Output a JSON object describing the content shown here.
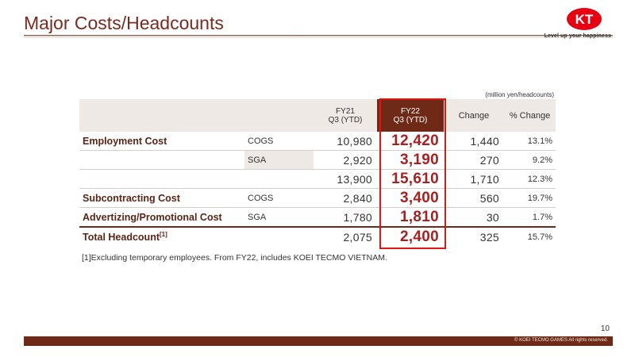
{
  "slide": {
    "title": "Major Costs/Headcounts",
    "logo_text": "KT",
    "logo_tagline": "Level up your happiness",
    "unit_note": "(million yen/headcounts)",
    "footnote": "[1]Excluding temporary employees. From FY22, includes KOEI TECMO VIETNAM.",
    "page_number": "10",
    "copyright": "© KOEI TECMO GAMES All rights reserved."
  },
  "colors": {
    "brand_brown": "#6e2a17",
    "title_color": "#7a2a1e",
    "highlight_red": "#a92020",
    "highlight_box": "#e01616",
    "logo_red": "#e60012"
  },
  "table": {
    "headers": {
      "fy21_line1": "FY21",
      "fy21_line2": "Q3 (YTD)",
      "fy22_line1": "FY22",
      "fy22_line2": "Q3 (YTD)",
      "change": "Change",
      "pct_change": "% Change"
    },
    "rows": [
      {
        "label": "Employment Cost",
        "sub": "COGS",
        "fy21": "10,980",
        "fy22": "12,420",
        "change": "1,440",
        "pct": "13.1%"
      },
      {
        "label": "",
        "sub": "SGA",
        "fy21": "2,920",
        "fy22": "3,190",
        "change": "270",
        "pct": "9.2%"
      },
      {
        "label": "",
        "sub": "",
        "fy21": "13,900",
        "fy22": "15,610",
        "change": "1,710",
        "pct": "12.3%"
      },
      {
        "label": "Subcontracting Cost",
        "sub": "COGS",
        "fy21": "2,840",
        "fy22": "3,400",
        "change": "560",
        "pct": "19.7%"
      },
      {
        "label": "Advertizing/Promotional Cost",
        "sub": "SGA",
        "fy21": "1,780",
        "fy22": "1,810",
        "change": "30",
        "pct": "1.7%"
      },
      {
        "label": "Total Headcount",
        "label_sup": "[1]",
        "sub": "",
        "fy21": "2,075",
        "fy22": "2,400",
        "change": "325",
        "pct": "15.7%"
      }
    ]
  }
}
